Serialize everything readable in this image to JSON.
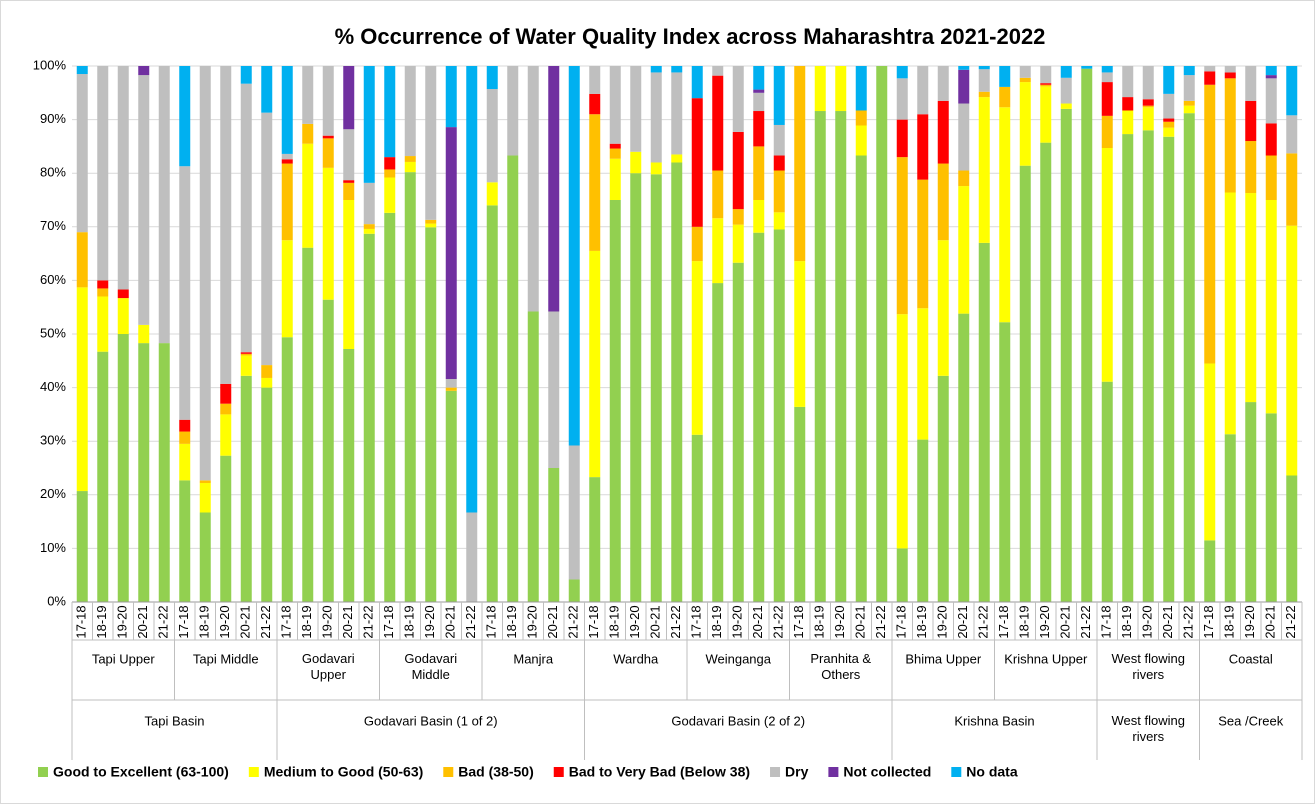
{
  "chart_data": {
    "type": "stacked_bar",
    "title": "% Occurrence of Water Quality Index across Maharashtra 2021-2022",
    "groups": [
      {
        "label": "Tapi Basin",
        "subgroups": [
          {
            "label": "Tapi Upper",
            "categories": [
              "17-18",
              "18-19",
              "19-20",
              "20-21",
              "21-22"
            ]
          },
          {
            "label": "Tapi Middle",
            "categories": [
              "17-18",
              "18-19",
              "19-20",
              "20-21",
              "21-22"
            ]
          }
        ]
      },
      {
        "label": "Godavari Basin (1 of 2)",
        "subgroups": [
          {
            "label": "Godavari Upper",
            "categories": [
              "17-18",
              "18-19",
              "19-20",
              "20-21",
              "21-22"
            ]
          },
          {
            "label": "Godavari Middle",
            "categories": [
              "17-18",
              "18-19",
              "19-20",
              "20-21",
              "21-22"
            ]
          },
          {
            "label": "Manjra",
            "categories": [
              "17-18",
              "18-19",
              "19-20",
              "20-21",
              "21-22"
            ]
          }
        ]
      },
      {
        "label": "Godavari Basin (2 of 2)",
        "subgroups": [
          {
            "label": "Wardha",
            "categories": [
              "17-18",
              "18-19",
              "19-20",
              "20-21",
              "21-22"
            ]
          },
          {
            "label": "Weinganga",
            "categories": [
              "17-18",
              "18-19",
              "19-20",
              "20-21",
              "21-22"
            ]
          },
          {
            "label": "Pranhita & Others",
            "categories": [
              "17-18",
              "18-19",
              "19-20",
              "20-21",
              "21-22"
            ]
          }
        ]
      },
      {
        "label": "Krishna Basin",
        "subgroups": [
          {
            "label": "Bhima Upper",
            "categories": [
              "17-18",
              "18-19",
              "19-20",
              "20-21",
              "21-22"
            ]
          },
          {
            "label": "Krishna Upper",
            "categories": [
              "17-18",
              "18-19",
              "19-20",
              "20-21",
              "21-22"
            ]
          }
        ]
      },
      {
        "label": "West flowing rivers",
        "subgroups": [
          {
            "label": "West flowing rivers",
            "categories": [
              "17-18",
              "18-19",
              "19-20",
              "20-21",
              "21-22"
            ]
          }
        ]
      },
      {
        "label": "Sea /Creek",
        "subgroups": [
          {
            "label": "Coastal",
            "categories": [
              "17-18",
              "18-19",
              "19-20",
              "20-21",
              "21-22"
            ]
          }
        ]
      }
    ],
    "series": [
      {
        "name": "Good to Excellent (63-100)",
        "color": "#92d050",
        "values": [
          20.7,
          46.7,
          50,
          48.3,
          48.3,
          22.7,
          16.7,
          27.3,
          42.2,
          40,
          49.4,
          66.1,
          56.4,
          47.2,
          68.7,
          72.6,
          80.2,
          69.9,
          39.4,
          0,
          74,
          83.3,
          54.2,
          25,
          4.2,
          23.3,
          75,
          80,
          79.8,
          82,
          31.2,
          59.5,
          63.3,
          68.9,
          69.5,
          36.4,
          91.6,
          91.6,
          83.3,
          100,
          10,
          30.3,
          42.2,
          53.8,
          67,
          52.2,
          81.4,
          85.7,
          92,
          99.5,
          41.1,
          87.3,
          88,
          86.8,
          91.2,
          11.5,
          31.3,
          37.3,
          35.2,
          23.6
        ]
      },
      {
        "name": "Medium to Good (50-63)",
        "color": "#ffff00",
        "values": [
          38,
          10.3,
          6.7,
          3.4,
          0,
          6.8,
          5.5,
          7.7,
          3.8,
          1.8,
          18.1,
          19.4,
          24.6,
          27.8,
          0.9,
          6.6,
          1.9,
          0.7,
          0,
          0,
          4.3,
          0,
          0,
          0,
          0,
          42.2,
          7.7,
          4,
          2.2,
          1.5,
          32.4,
          12.1,
          7.1,
          6.1,
          3.2,
          27.2,
          8.4,
          8.4,
          5.6,
          0,
          43.7,
          24.5,
          25.3,
          23.8,
          27.2,
          40.1,
          15.6,
          10.5,
          1,
          0,
          43.6,
          4.4,
          4.3,
          1.7,
          1.4,
          33,
          45.1,
          39,
          39.8,
          46.6
        ]
      },
      {
        "name": "Bad (38-50)",
        "color": "#ffc000",
        "values": [
          10.3,
          1.5,
          0,
          0,
          0,
          2.3,
          0.5,
          2,
          0.3,
          2.4,
          14.3,
          3.7,
          5.5,
          3.2,
          0.9,
          1.5,
          1.1,
          0.7,
          0.6,
          0,
          0,
          0,
          0,
          0,
          0,
          25.5,
          1.9,
          0,
          0,
          0,
          6.4,
          8.9,
          2.9,
          10,
          7.8,
          36.4,
          0,
          0,
          2.8,
          0,
          29.3,
          24,
          14.3,
          2.9,
          1,
          3.8,
          0.8,
          0.3,
          0,
          0,
          6,
          0,
          0.3,
          1.1,
          0.9,
          52,
          21.3,
          9.7,
          8.3,
          13.5
        ]
      },
      {
        "name": "Bad to Very Bad (Below 38)",
        "color": "#ff0000",
        "values": [
          0,
          1.5,
          1.6,
          0,
          0,
          2.2,
          0,
          3.7,
          0.3,
          0,
          0.8,
          0,
          0.5,
          0.5,
          0,
          2.3,
          0,
          0,
          0,
          0,
          0,
          0,
          0,
          0,
          0,
          3.8,
          0.9,
          0,
          0,
          0,
          24,
          17.7,
          14.4,
          6.6,
          2.8,
          0,
          0,
          0,
          0,
          0,
          7,
          12.2,
          11.7,
          0,
          0,
          0,
          0,
          0.3,
          0,
          0,
          6.3,
          2.5,
          1.2,
          0.6,
          0,
          2.5,
          1.1,
          7.5,
          6,
          0
        ]
      },
      {
        "name": "Dry",
        "color": "#bfbfbf",
        "values": [
          29.5,
          40,
          41.7,
          46.6,
          51.7,
          47.3,
          77.3,
          59.3,
          50.1,
          47.1,
          1,
          10.8,
          13,
          9.5,
          7.7,
          0,
          16.8,
          28.7,
          1.6,
          16.7,
          17.4,
          16.7,
          45.8,
          29.2,
          25,
          5.2,
          14.5,
          16,
          16.8,
          15.3,
          0,
          1.8,
          12.3,
          3.4,
          5.7,
          0,
          0,
          0,
          0,
          0,
          7.7,
          9,
          6.5,
          12.5,
          4.2,
          0,
          2.2,
          3.2,
          4.8,
          0,
          1.8,
          5.8,
          6.2,
          4.6,
          4.8,
          1,
          1.2,
          6.5,
          8.4,
          7.1
        ]
      },
      {
        "name": "Not collected",
        "color": "#7030a0",
        "values": [
          0,
          0,
          0,
          1.7,
          0,
          0,
          0,
          0,
          0,
          0,
          0,
          0,
          0,
          11.8,
          0,
          0,
          0,
          0,
          47,
          0,
          0,
          0,
          0,
          45.8,
          0,
          0,
          0,
          0,
          0,
          0,
          0,
          0,
          0,
          0.6,
          0,
          0,
          0,
          0,
          0,
          0,
          0,
          0,
          0,
          6.3,
          0,
          0,
          0,
          0,
          0,
          0,
          0,
          0,
          0,
          0,
          0,
          0,
          0,
          0,
          0.6,
          0
        ]
      },
      {
        "name": "No data",
        "color": "#00b0f0",
        "values": [
          1.5,
          0,
          0,
          0,
          0,
          18.7,
          0,
          0,
          3.3,
          8.7,
          16.4,
          0,
          0,
          0,
          21.8,
          17,
          0,
          0,
          11.4,
          83.3,
          4.3,
          0,
          0,
          0,
          70.8,
          0,
          0,
          0,
          1.2,
          1.2,
          6,
          0,
          0,
          4.4,
          11,
          0,
          0,
          0,
          8.3,
          0,
          2.3,
          0,
          0,
          0.7,
          0.6,
          3.9,
          0,
          0,
          2.2,
          0.5,
          1.2,
          0,
          0,
          5.2,
          1.7,
          0,
          0,
          0,
          1.7,
          9.2
        ]
      }
    ],
    "ylim": [
      0,
      100
    ],
    "yticks": [
      {
        "value": 0,
        "label": "0%"
      },
      {
        "value": 10,
        "label": "10%"
      },
      {
        "value": 20,
        "label": "20%"
      },
      {
        "value": 30,
        "label": "30%"
      },
      {
        "value": 40,
        "label": "40%"
      },
      {
        "value": 50,
        "label": "50%"
      },
      {
        "value": 60,
        "label": "60%"
      },
      {
        "value": 70,
        "label": "70%"
      },
      {
        "value": 80,
        "label": "80%"
      },
      {
        "value": 90,
        "label": "90%"
      },
      {
        "value": 100,
        "label": "100%"
      }
    ],
    "grid": true,
    "legend": "bottom"
  }
}
